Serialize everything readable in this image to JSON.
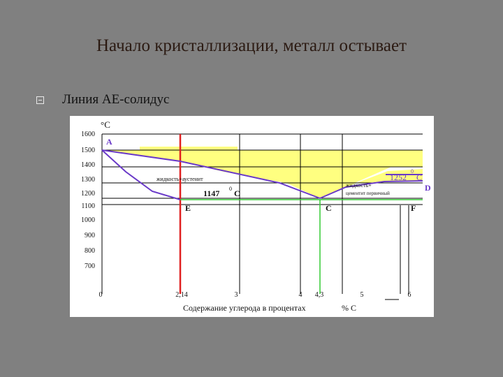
{
  "slide": {
    "title": "Начало кристаллизации, металл остывает",
    "bullet": "Линия AE-солидус"
  },
  "diagram": {
    "y_unit": "°C",
    "y_ticks": [
      "1600",
      "1500",
      "1400",
      "1300",
      "1200",
      "1100",
      "1000",
      "900",
      "800",
      "700"
    ],
    "x_ticks": [
      "0",
      "2,14",
      "3",
      "4",
      "4,3",
      "5",
      "6"
    ],
    "x_axis_title": "Содержание углерода в процентах",
    "x_axis_unit": "% С",
    "points": {
      "A": "A",
      "E": "E",
      "C": "C",
      "D": "D",
      "F": "F"
    },
    "annotations": {
      "austenite_region": "жидкость+аустенит",
      "cementite_region_line1": "жидкость+",
      "cementite_region_line2": "цементит первичный",
      "eutectic_temp": "1147",
      "eutectic_unit": "С",
      "cementite_temp": "1252",
      "cementite_unit": "С",
      "degree_sign": "0"
    },
    "colors": {
      "liquidus_solidus": "#6a3ac8",
      "two_phase_fill": "#ffff80",
      "eutectic_line": "#33cc33",
      "composition_2_14_line": "#e02020",
      "grid": "#000000"
    }
  }
}
